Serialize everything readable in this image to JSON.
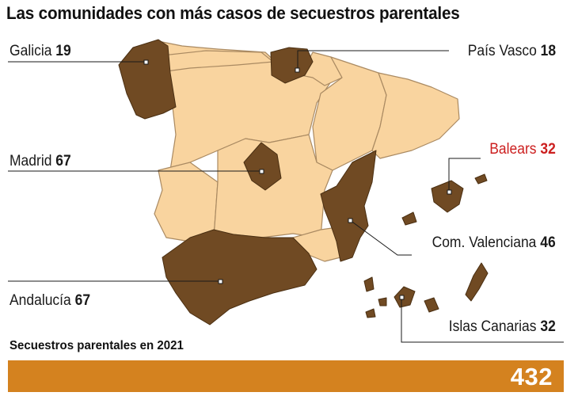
{
  "title": "Las comunidades con más casos de secuestros parentales",
  "subtitle": "Secuestros parentales en 2021",
  "total": "432",
  "colors": {
    "highlight": "#704a23",
    "base": "#f9d49f",
    "border": "#aa8a62",
    "accent_red": "#cc1f1f",
    "bar": "#d4821f"
  },
  "regions": [
    {
      "name": "Galicia",
      "value": "19"
    },
    {
      "name": "País Vasco",
      "value": "18"
    },
    {
      "name": "Madrid",
      "value": "67"
    },
    {
      "name": "Balears",
      "value": "32"
    },
    {
      "name": "Com. Valenciana",
      "value": "46"
    },
    {
      "name": "Andalucía",
      "value": "67"
    },
    {
      "name": "Islas Canarias",
      "value": "32"
    }
  ]
}
